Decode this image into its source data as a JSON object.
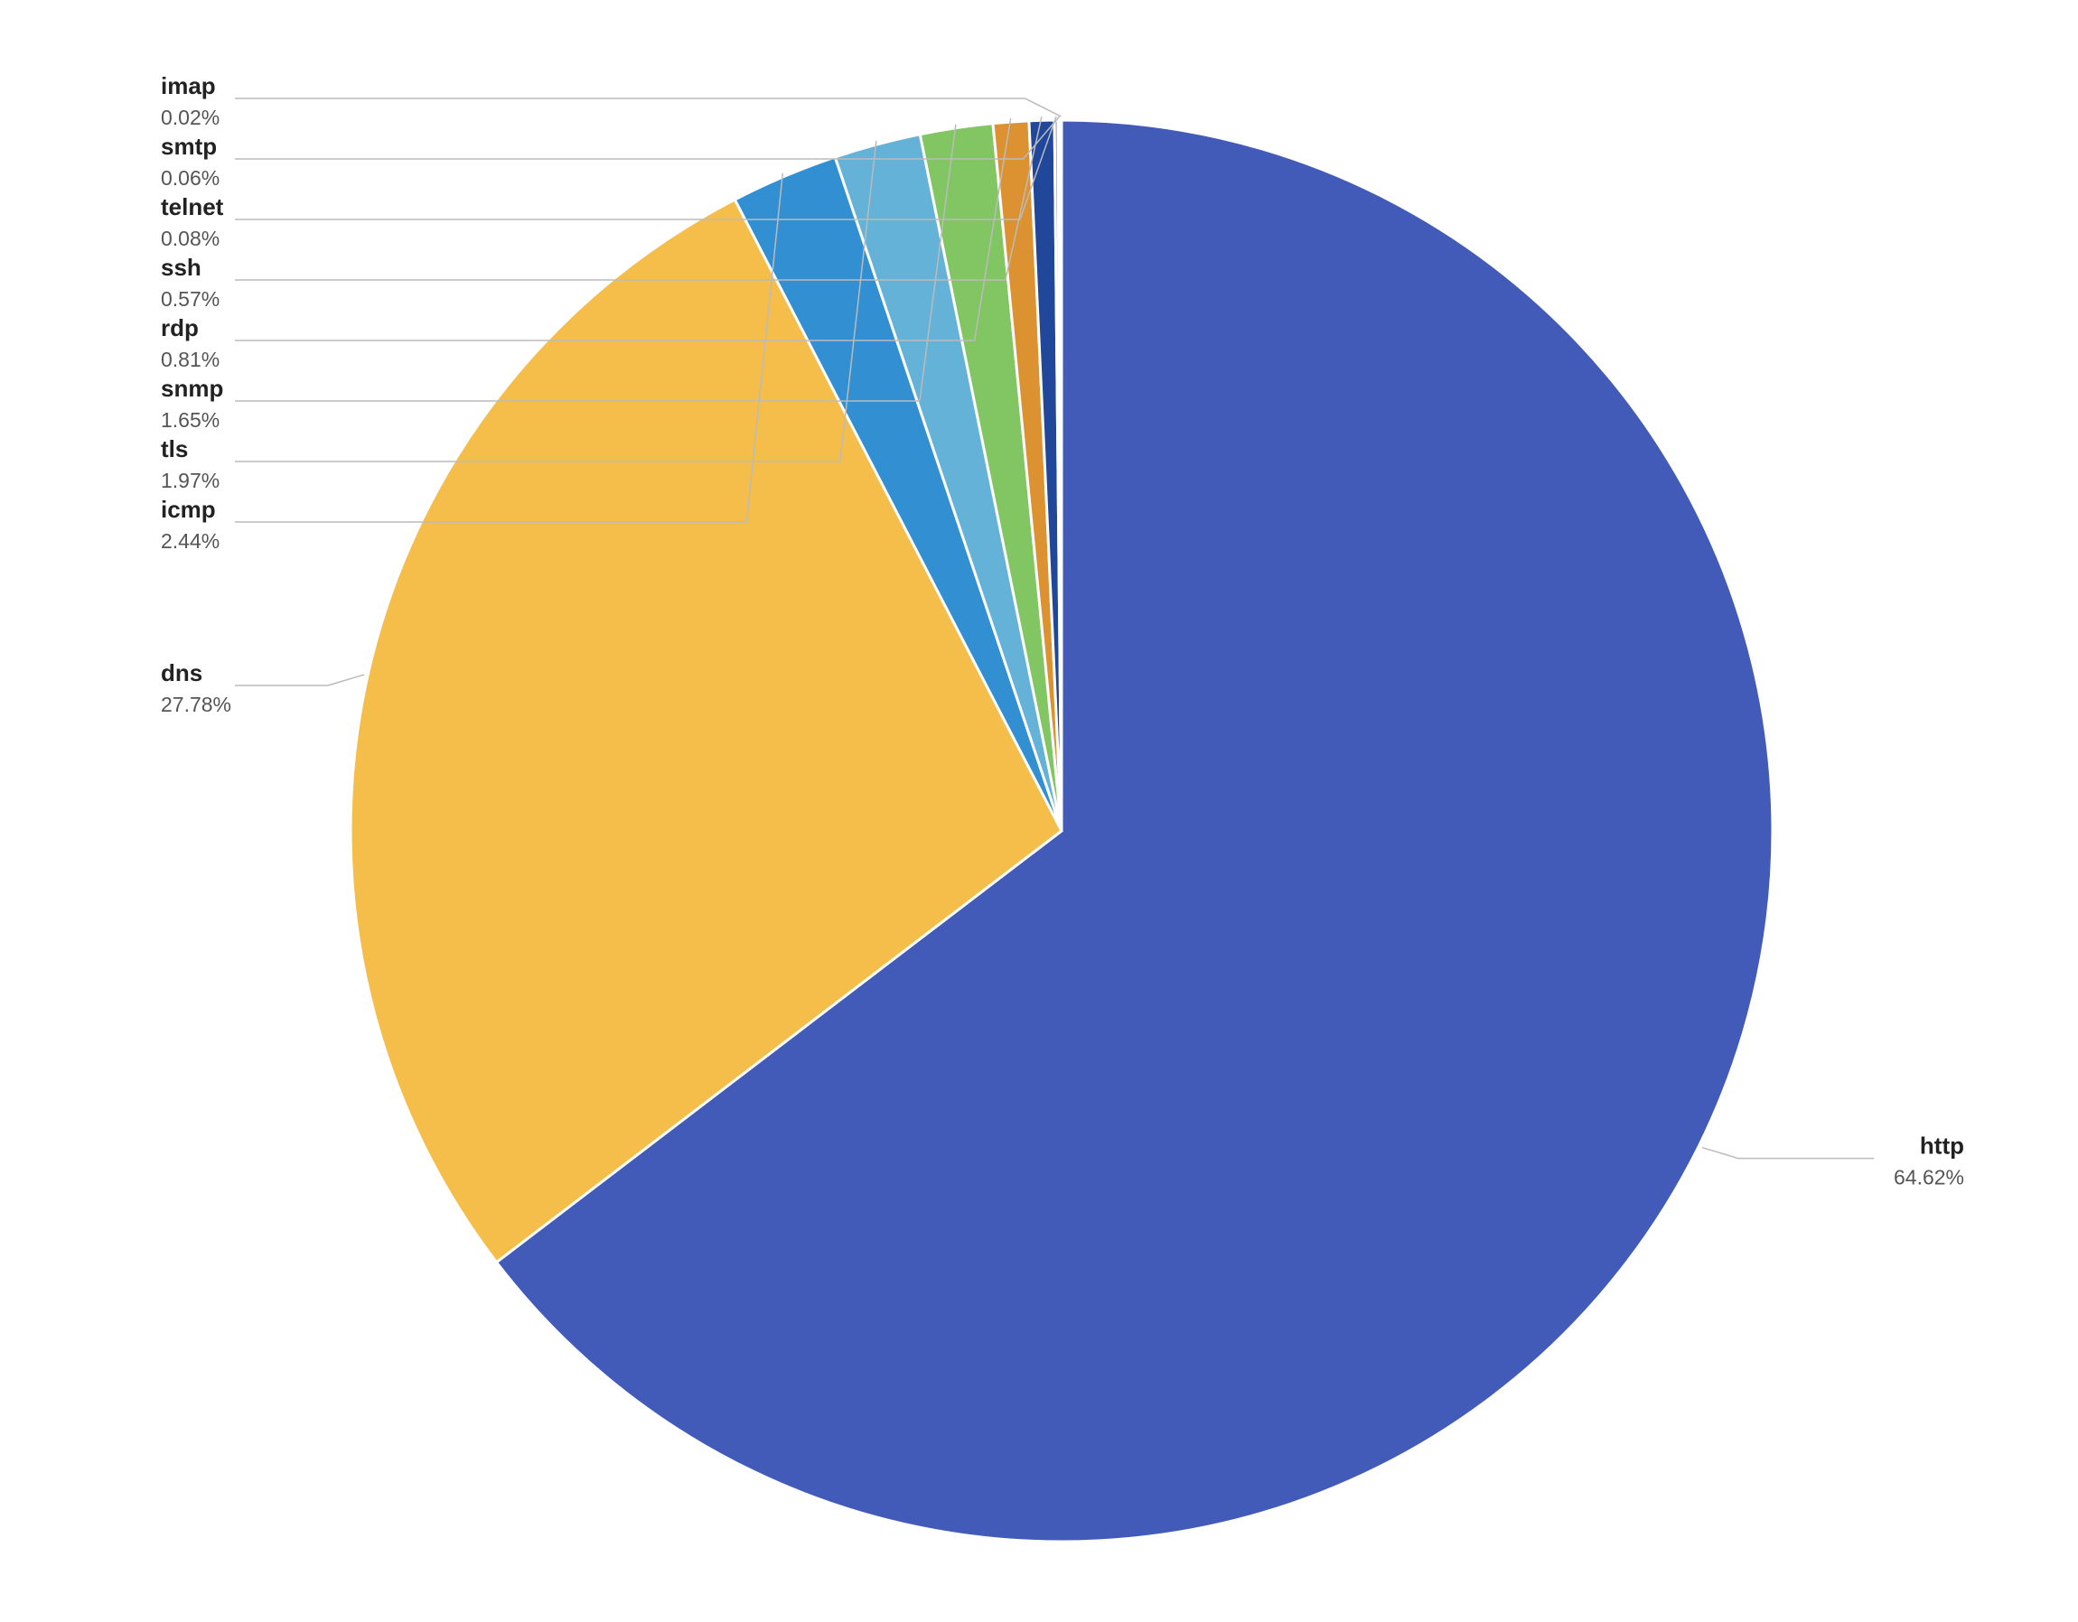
{
  "chart_data": {
    "type": "pie",
    "categories": [
      "http",
      "dns",
      "icmp",
      "tls",
      "snmp",
      "rdp",
      "ssh",
      "telnet",
      "smtp",
      "imap"
    ],
    "values": [
      64.62,
      27.78,
      2.44,
      1.97,
      1.65,
      0.81,
      0.57,
      0.08,
      0.06,
      0.02
    ],
    "value_labels": [
      "64.62%",
      "27.78%",
      "2.44%",
      "1.97%",
      "1.65%",
      "0.81%",
      "0.57%",
      "0.08%",
      "0.06%",
      "0.02%"
    ],
    "colors": [
      "#435bb8",
      "#f5bd49",
      "#318fd2",
      "#64b2d8",
      "#82c663",
      "#dd9232",
      "#21479a",
      "#888888",
      "#8849a5",
      "#888888"
    ]
  }
}
